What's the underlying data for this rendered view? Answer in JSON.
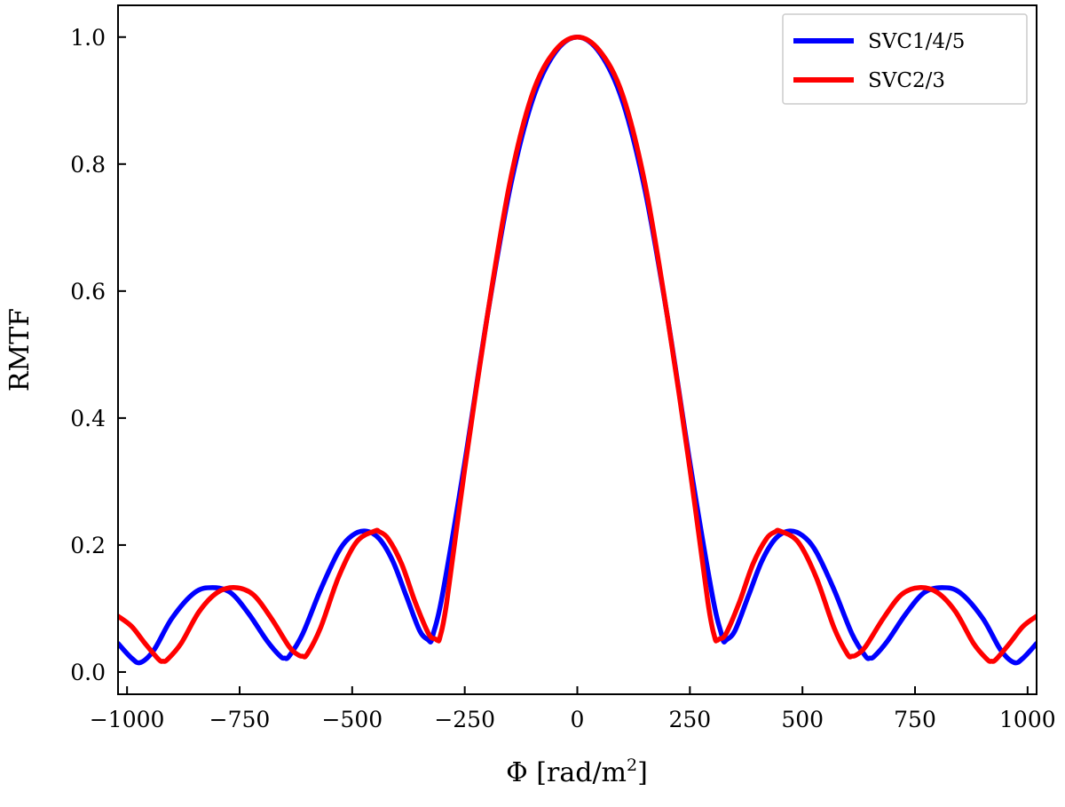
{
  "chart_data": {
    "type": "line",
    "title": "",
    "xlabel": "Φ [rad/m²]",
    "xlabel_main": "Φ [rad/m",
    "xlabel_sup": "2",
    "xlabel_end": "]",
    "ylabel": "RMTF",
    "xlim": [
      -1020,
      1020
    ],
    "ylim": [
      -0.035,
      1.05
    ],
    "xticks": [
      -1000,
      -750,
      -500,
      -250,
      0,
      250,
      500,
      750,
      1000
    ],
    "xtick_labels": [
      "−1000",
      "−750",
      "−500",
      "−250",
      "0",
      "250",
      "500",
      "750",
      "1000"
    ],
    "yticks": [
      0.0,
      0.2,
      0.4,
      0.6,
      0.8,
      1.0
    ],
    "ytick_labels": [
      "0.0",
      "0.2",
      "0.4",
      "0.6",
      "0.8",
      "1.0"
    ],
    "grid": false,
    "legend": {
      "position": "top-right"
    },
    "series": [
      {
        "name": "SVC1/4/5",
        "color": "#0000ff",
        "x": [
          -1020,
          -990,
          -970,
          -940,
          -900,
          -850,
          -810,
          -770,
          -730,
          -690,
          -660,
          -650,
          -640,
          -610,
          -570,
          -530,
          -500,
          -470,
          -440,
          -410,
          -380,
          -350,
          -330,
          -325,
          -320,
          -300,
          -250,
          -200,
          -150,
          -100,
          -50,
          0,
          50,
          100,
          150,
          200,
          250,
          300,
          320,
          325,
          330,
          350,
          380,
          410,
          440,
          470,
          500,
          530,
          570,
          610,
          640,
          650,
          660,
          690,
          730,
          770,
          810,
          850,
          900,
          940,
          970,
          990,
          1020
        ],
        "y": [
          0.045,
          0.022,
          0.015,
          0.035,
          0.085,
          0.125,
          0.133,
          0.125,
          0.092,
          0.05,
          0.025,
          0.022,
          0.025,
          0.06,
          0.13,
          0.19,
          0.215,
          0.222,
          0.21,
          0.175,
          0.12,
          0.065,
          0.05,
          0.048,
          0.06,
          0.12,
          0.33,
          0.56,
          0.76,
          0.9,
          0.975,
          1.0,
          0.975,
          0.9,
          0.76,
          0.56,
          0.33,
          0.12,
          0.06,
          0.048,
          0.05,
          0.065,
          0.12,
          0.175,
          0.21,
          0.222,
          0.215,
          0.19,
          0.13,
          0.06,
          0.025,
          0.022,
          0.025,
          0.05,
          0.092,
          0.125,
          0.133,
          0.125,
          0.085,
          0.035,
          0.015,
          0.022,
          0.045
        ]
      },
      {
        "name": "SVC2/3",
        "color": "#ff0000",
        "x": [
          -1020,
          -990,
          -960,
          -930,
          -920,
          -910,
          -880,
          -840,
          -800,
          -760,
          -720,
          -680,
          -640,
          -620,
          -610,
          -600,
          -570,
          -530,
          -490,
          -450,
          -440,
          -420,
          -390,
          -360,
          -330,
          -315,
          -310,
          -305,
          -290,
          -250,
          -200,
          -150,
          -100,
          -50,
          0,
          50,
          100,
          150,
          200,
          250,
          290,
          305,
          310,
          315,
          330,
          360,
          390,
          420,
          440,
          450,
          490,
          530,
          570,
          600,
          610,
          620,
          640,
          680,
          720,
          760,
          800,
          840,
          880,
          910,
          920,
          930,
          960,
          990,
          1020
        ],
        "y": [
          0.088,
          0.072,
          0.045,
          0.02,
          0.017,
          0.02,
          0.045,
          0.095,
          0.125,
          0.133,
          0.122,
          0.085,
          0.04,
          0.027,
          0.025,
          0.028,
          0.07,
          0.15,
          0.205,
          0.222,
          0.221,
          0.21,
          0.17,
          0.11,
          0.06,
          0.052,
          0.05,
          0.055,
          0.11,
          0.32,
          0.56,
          0.77,
          0.91,
          0.978,
          1.0,
          0.978,
          0.91,
          0.77,
          0.56,
          0.32,
          0.11,
          0.055,
          0.05,
          0.052,
          0.06,
          0.11,
          0.17,
          0.21,
          0.221,
          0.222,
          0.205,
          0.15,
          0.07,
          0.028,
          0.025,
          0.027,
          0.04,
          0.085,
          0.122,
          0.133,
          0.125,
          0.095,
          0.045,
          0.02,
          0.017,
          0.02,
          0.045,
          0.072,
          0.088
        ]
      }
    ]
  }
}
